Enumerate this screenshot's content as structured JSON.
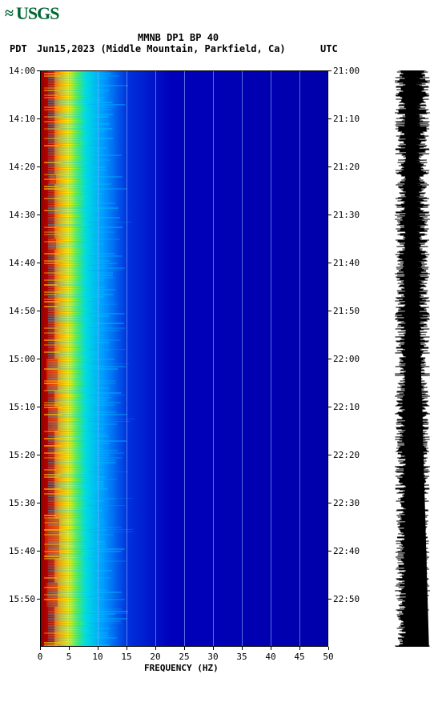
{
  "logo": "USGS",
  "title": "MMNB DP1 BP 40",
  "subtitle_left": "PDT",
  "subtitle_date": "Jun15,2023 (Middle Mountain, Parkfield, Ca)",
  "subtitle_right": "UTC",
  "chart": {
    "type": "spectrogram",
    "xlabel": "FREQUENCY (HZ)",
    "xlim": [
      0,
      50
    ],
    "xtick_step": 5,
    "xticks": [
      0,
      5,
      10,
      15,
      20,
      25,
      30,
      35,
      40,
      45,
      50
    ],
    "yticks_left": [
      "14:00",
      "14:10",
      "14:20",
      "14:30",
      "14:40",
      "14:50",
      "15:00",
      "15:10",
      "15:20",
      "15:30",
      "15:40",
      "15:50"
    ],
    "yticks_right": [
      "21:00",
      "21:10",
      "21:20",
      "21:30",
      "21:40",
      "21:50",
      "22:00",
      "22:10",
      "22:20",
      "22:30",
      "22:40",
      "22:50"
    ],
    "grid_color": "#88bbff",
    "background_color": "#0000cc",
    "colormap": {
      "high": "#aa0000",
      "mid_high": "#ff4400",
      "mid": "#ffcc00",
      "mid_low": "#00dddd",
      "low": "#0066ff",
      "bg": "#0000aa"
    },
    "title_fontsize": 12,
    "label_fontsize": 11,
    "waveform_color": "#000000"
  }
}
